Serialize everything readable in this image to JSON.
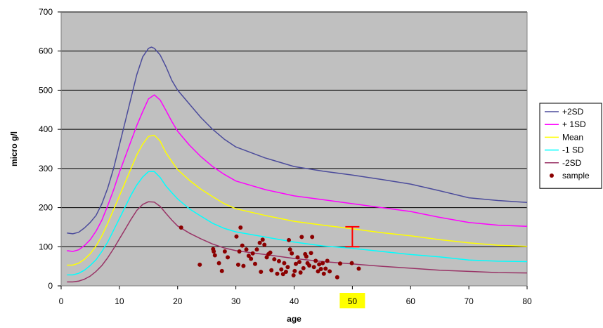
{
  "chart_data": {
    "type": "line",
    "title": "",
    "xlabel": "age",
    "ylabel": "micro g/l",
    "xlim": [
      0,
      80
    ],
    "ylim": [
      0,
      700
    ],
    "x_ticks": [
      0,
      10,
      20,
      30,
      40,
      50,
      60,
      70,
      80
    ],
    "y_ticks": [
      0,
      100,
      200,
      300,
      400,
      500,
      600,
      700
    ],
    "grid": "horizontal",
    "legend_position": "right",
    "plot_background": "#c0c0c0",
    "highlighted_tick": "50",
    "highlight_color": "#ffff00",
    "series": [
      {
        "name": "+2SD",
        "color": "#4b4b9b",
        "points": [
          [
            1,
            135
          ],
          [
            2,
            133
          ],
          [
            3,
            137
          ],
          [
            4,
            148
          ],
          [
            5,
            162
          ],
          [
            6,
            180
          ],
          [
            7,
            210
          ],
          [
            8,
            250
          ],
          [
            9,
            300
          ],
          [
            10,
            360
          ],
          [
            11,
            420
          ],
          [
            12,
            480
          ],
          [
            13,
            540
          ],
          [
            14,
            585
          ],
          [
            15,
            607
          ],
          [
            15.5,
            610
          ],
          [
            16,
            607
          ],
          [
            17,
            590
          ],
          [
            18,
            560
          ],
          [
            19,
            525
          ],
          [
            20,
            500
          ],
          [
            22,
            465
          ],
          [
            24,
            430
          ],
          [
            26,
            400
          ],
          [
            28,
            375
          ],
          [
            30,
            355
          ],
          [
            35,
            327
          ],
          [
            40,
            305
          ],
          [
            45,
            293
          ],
          [
            50,
            283
          ],
          [
            55,
            272
          ],
          [
            60,
            260
          ],
          [
            65,
            243
          ],
          [
            70,
            225
          ],
          [
            75,
            218
          ],
          [
            80,
            213
          ]
        ]
      },
      {
        "name": "+ 1SD",
        "color": "#ff00ff",
        "points": [
          [
            1,
            90
          ],
          [
            2,
            88
          ],
          [
            3,
            92
          ],
          [
            4,
            103
          ],
          [
            5,
            118
          ],
          [
            6,
            140
          ],
          [
            7,
            168
          ],
          [
            8,
            205
          ],
          [
            9,
            245
          ],
          [
            10,
            290
          ],
          [
            11,
            330
          ],
          [
            12,
            370
          ],
          [
            13,
            410
          ],
          [
            14,
            445
          ],
          [
            15,
            478
          ],
          [
            16,
            488
          ],
          [
            17,
            475
          ],
          [
            18,
            448
          ],
          [
            19,
            420
          ],
          [
            20,
            395
          ],
          [
            22,
            360
          ],
          [
            24,
            330
          ],
          [
            26,
            305
          ],
          [
            28,
            285
          ],
          [
            30,
            268
          ],
          [
            35,
            246
          ],
          [
            40,
            230
          ],
          [
            45,
            220
          ],
          [
            50,
            210
          ],
          [
            55,
            200
          ],
          [
            60,
            190
          ],
          [
            65,
            175
          ],
          [
            70,
            162
          ],
          [
            75,
            155
          ],
          [
            80,
            152
          ]
        ]
      },
      {
        "name": "Mean",
        "color": "#ffff00",
        "points": [
          [
            1,
            53
          ],
          [
            2,
            53
          ],
          [
            3,
            58
          ],
          [
            4,
            68
          ],
          [
            5,
            82
          ],
          [
            6,
            102
          ],
          [
            7,
            128
          ],
          [
            8,
            160
          ],
          [
            9,
            195
          ],
          [
            10,
            230
          ],
          [
            11,
            265
          ],
          [
            12,
            300
          ],
          [
            13,
            335
          ],
          [
            14,
            362
          ],
          [
            15,
            382
          ],
          [
            16,
            385
          ],
          [
            17,
            370
          ],
          [
            18,
            340
          ],
          [
            19,
            318
          ],
          [
            20,
            297
          ],
          [
            22,
            270
          ],
          [
            24,
            247
          ],
          [
            26,
            228
          ],
          [
            28,
            210
          ],
          [
            30,
            197
          ],
          [
            35,
            180
          ],
          [
            40,
            165
          ],
          [
            45,
            155
          ],
          [
            50,
            146
          ],
          [
            55,
            136
          ],
          [
            60,
            128
          ],
          [
            65,
            118
          ],
          [
            70,
            110
          ],
          [
            75,
            104
          ],
          [
            80,
            101
          ]
        ]
      },
      {
        "name": "-1 SD",
        "color": "#00ffff",
        "points": [
          [
            1,
            28
          ],
          [
            2,
            28
          ],
          [
            3,
            32
          ],
          [
            4,
            40
          ],
          [
            5,
            52
          ],
          [
            6,
            67
          ],
          [
            7,
            88
          ],
          [
            8,
            112
          ],
          [
            9,
            142
          ],
          [
            10,
            172
          ],
          [
            11,
            202
          ],
          [
            12,
            232
          ],
          [
            13,
            258
          ],
          [
            14,
            278
          ],
          [
            15,
            292
          ],
          [
            16,
            292
          ],
          [
            17,
            277
          ],
          [
            18,
            255
          ],
          [
            19,
            238
          ],
          [
            20,
            222
          ],
          [
            22,
            197
          ],
          [
            24,
            178
          ],
          [
            26,
            160
          ],
          [
            28,
            147
          ],
          [
            30,
            138
          ],
          [
            35,
            125
          ],
          [
            40,
            112
          ],
          [
            45,
            102
          ],
          [
            50,
            96
          ],
          [
            55,
            88
          ],
          [
            60,
            80
          ],
          [
            65,
            74
          ],
          [
            70,
            66
          ],
          [
            75,
            63
          ],
          [
            80,
            62
          ]
        ]
      },
      {
        "name": "-2SD",
        "color": "#993366",
        "points": [
          [
            1,
            10
          ],
          [
            2,
            10
          ],
          [
            3,
            12
          ],
          [
            4,
            17
          ],
          [
            5,
            25
          ],
          [
            6,
            37
          ],
          [
            7,
            52
          ],
          [
            8,
            72
          ],
          [
            9,
            95
          ],
          [
            10,
            120
          ],
          [
            11,
            145
          ],
          [
            12,
            170
          ],
          [
            13,
            193
          ],
          [
            14,
            208
          ],
          [
            15,
            215
          ],
          [
            16,
            214
          ],
          [
            17,
            203
          ],
          [
            18,
            185
          ],
          [
            19,
            168
          ],
          [
            20,
            153
          ],
          [
            22,
            135
          ],
          [
            24,
            120
          ],
          [
            26,
            107
          ],
          [
            28,
            97
          ],
          [
            30,
            90
          ],
          [
            35,
            80
          ],
          [
            40,
            70
          ],
          [
            45,
            62
          ],
          [
            50,
            56
          ],
          [
            55,
            50
          ],
          [
            60,
            45
          ],
          [
            65,
            40
          ],
          [
            70,
            37
          ],
          [
            75,
            34
          ],
          [
            80,
            33
          ]
        ]
      },
      {
        "name": "sample",
        "type": "scatter",
        "color": "#8b0000",
        "points": [
          [
            20.6,
            149
          ],
          [
            23.8,
            54
          ],
          [
            26.1,
            94
          ],
          [
            26.2,
            88
          ],
          [
            26.4,
            78
          ],
          [
            27.1,
            58
          ],
          [
            27.6,
            38
          ],
          [
            28.1,
            88
          ],
          [
            28.6,
            73
          ],
          [
            30.1,
            126
          ],
          [
            30.4,
            54
          ],
          [
            30.6,
            88
          ],
          [
            30.8,
            149
          ],
          [
            31.1,
            103
          ],
          [
            31.3,
            51
          ],
          [
            31.8,
            93
          ],
          [
            32.2,
            77
          ],
          [
            32.6,
            69
          ],
          [
            32.9,
            83
          ],
          [
            33.3,
            56
          ],
          [
            33.6,
            93
          ],
          [
            34.1,
            110
          ],
          [
            34.3,
            36
          ],
          [
            34.6,
            118
          ],
          [
            34.9,
            105
          ],
          [
            35.3,
            73
          ],
          [
            35.6,
            81
          ],
          [
            35.9,
            85
          ],
          [
            36.1,
            40
          ],
          [
            36.6,
            68
          ],
          [
            37.1,
            31
          ],
          [
            37.4,
            63
          ],
          [
            37.8,
            42
          ],
          [
            38.1,
            30
          ],
          [
            38.3,
            58
          ],
          [
            38.6,
            36
          ],
          [
            38.9,
            48
          ],
          [
            39.1,
            117
          ],
          [
            39.3,
            93
          ],
          [
            39.6,
            83
          ],
          [
            39.9,
            27
          ],
          [
            40.1,
            38
          ],
          [
            40.3,
            56
          ],
          [
            40.6,
            73
          ],
          [
            40.9,
            61
          ],
          [
            41.1,
            34
          ],
          [
            41.3,
            125
          ],
          [
            41.6,
            45
          ],
          [
            41.9,
            81
          ],
          [
            42.1,
            75
          ],
          [
            42.3,
            58
          ],
          [
            42.6,
            52
          ],
          [
            42.9,
            84
          ],
          [
            43.1,
            125
          ],
          [
            43.4,
            48
          ],
          [
            43.7,
            64
          ],
          [
            44.1,
            37
          ],
          [
            44.3,
            55
          ],
          [
            44.6,
            43
          ],
          [
            44.9,
            58
          ],
          [
            45.1,
            31
          ],
          [
            45.4,
            44
          ],
          [
            45.7,
            64
          ],
          [
            46.1,
            37
          ],
          [
            47.4,
            22
          ],
          [
            47.9,
            57
          ],
          [
            49.9,
            58
          ],
          [
            51.1,
            44
          ]
        ]
      }
    ],
    "annotations": [
      {
        "type": "error_bar",
        "x": 50,
        "y_low": 100,
        "y_high": 151,
        "color": "#ff0000"
      }
    ]
  }
}
